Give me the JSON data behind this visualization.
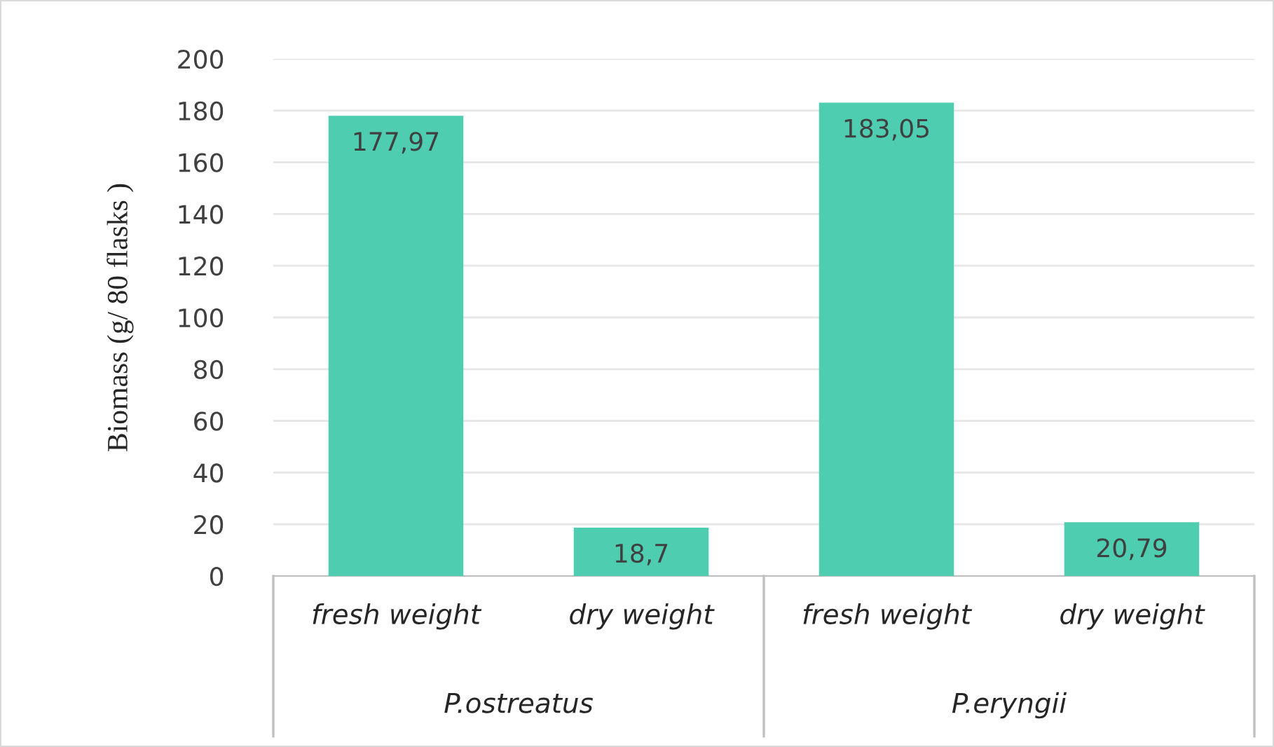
{
  "chart_data": {
    "type": "bar",
    "ylabel": "Biomass (g/ 80 flasks )",
    "categories": [
      "fresh weight",
      "dry weight",
      "fresh weight",
      "dry weight"
    ],
    "values": [
      177.97,
      18.7,
      183.05,
      20.79
    ],
    "value_labels": [
      "177,97",
      "18,7",
      "183,05",
      "20,79"
    ],
    "color": "#4ecdb0",
    "ylim": [
      0,
      200
    ],
    "yticks": [
      0,
      20,
      40,
      60,
      80,
      100,
      120,
      140,
      160,
      180,
      200
    ],
    "grid": "y",
    "legend": false,
    "annotations": [
      "P.ostreatus",
      "P.eryngii"
    ]
  }
}
